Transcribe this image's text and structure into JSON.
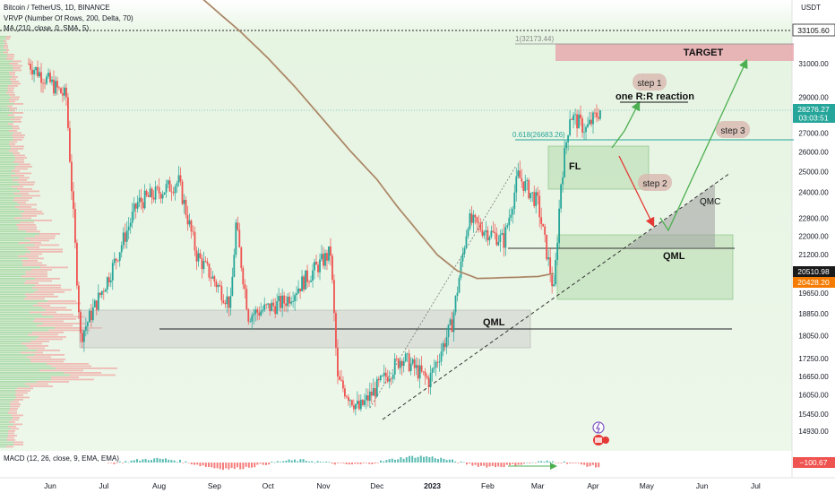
{
  "header": {
    "title": "Bitcoin / TetherUS, 1D, BINANCE",
    "indicator1": "VRVP (Number Of Rows, 200, Delta, 70)",
    "indicator2": "MA (210, close, 0, SMA, 5)",
    "currency": "USDT"
  },
  "macd": {
    "label": "MACD (12, 26, close, 9, EMA, EMA)",
    "value": "−100.67"
  },
  "annotations": {
    "target": "TARGET",
    "step1": "step 1",
    "step2": "step 2",
    "step3": "step 3",
    "reaction": "one R:R reaction",
    "fl": "FL",
    "qmc": "QMC",
    "qml_upper": "QML",
    "qml_lower": "QML",
    "fib_top": "1(32173.44)",
    "fib_618": "0.618(26683.26)"
  },
  "price_badges": {
    "last": "28276.27",
    "countdown": "03:03:51",
    "level_33105": "33105.60",
    "level_20510": "20510.98",
    "ma_value": "20428.20"
  },
  "colors": {
    "up": "#26a69a",
    "down": "#ef5350",
    "ma": "#c8a97e",
    "target_box": "#e8a0a8",
    "zone_green": "#a8d5a0",
    "zone_gray": "#c8c8c8",
    "arrow_green": "#4caf50",
    "arrow_red": "#e53935",
    "bg_green": "#e4f3e0"
  },
  "chart_data": {
    "type": "candlestick",
    "symbol": "BTC/USDT",
    "timeframe": "1D",
    "y_axis_scale": "log",
    "y_ticks": [
      "31000.00",
      "29000.00",
      "27000.00",
      "26000.00",
      "25000.00",
      "24000.00",
      "22800.00",
      "22000.00",
      "21200.00",
      "19650.00",
      "18850.00",
      "18050.00",
      "17250.00",
      "16650.00",
      "16050.00",
      "15450.00",
      "14930.00"
    ],
    "x_ticks": [
      "Jun",
      "Jul",
      "Aug",
      "Sep",
      "Oct",
      "Nov",
      "Dec",
      "2023",
      "Feb",
      "Mar",
      "Apr",
      "May",
      "Jun",
      "Jul"
    ],
    "price_path": [
      {
        "t": "2022-05-20",
        "p": 31000
      },
      {
        "t": "2022-06-10",
        "p": 29000
      },
      {
        "t": "2022-06-18",
        "p": 18000
      },
      {
        "t": "2022-07-05",
        "p": 20500
      },
      {
        "t": "2022-07-20",
        "p": 23500
      },
      {
        "t": "2022-08-12",
        "p": 24500
      },
      {
        "t": "2022-08-22",
        "p": 21200
      },
      {
        "t": "2022-09-10",
        "p": 19200
      },
      {
        "t": "2022-09-13",
        "p": 22500
      },
      {
        "t": "2022-09-20",
        "p": 18800
      },
      {
        "t": "2022-10-10",
        "p": 19300
      },
      {
        "t": "2022-11-05",
        "p": 21300
      },
      {
        "t": "2022-11-09",
        "p": 16500
      },
      {
        "t": "2022-11-21",
        "p": 15600
      },
      {
        "t": "2022-12-15",
        "p": 17300
      },
      {
        "t": "2022-12-30",
        "p": 16500
      },
      {
        "t": "2023-01-12",
        "p": 18500
      },
      {
        "t": "2023-01-21",
        "p": 22700
      },
      {
        "t": "2023-02-10",
        "p": 21800
      },
      {
        "t": "2023-02-18",
        "p": 24800
      },
      {
        "t": "2023-03-01",
        "p": 23500
      },
      {
        "t": "2023-03-10",
        "p": 19700
      },
      {
        "t": "2023-03-14",
        "p": 24500
      },
      {
        "t": "2023-03-19",
        "p": 28000
      },
      {
        "t": "2023-03-28",
        "p": 27200
      },
      {
        "t": "2023-04-05",
        "p": 28276
      }
    ],
    "ma210_path": [
      {
        "t": "2022-05-25",
        "p": 44000
      },
      {
        "t": "2022-08-01",
        "p": 38000
      },
      {
        "t": "2022-10-01",
        "p": 31500
      },
      {
        "t": "2022-12-01",
        "p": 24500
      },
      {
        "t": "2023-01-15",
        "p": 20200
      },
      {
        "t": "2023-03-01",
        "p": 20300
      },
      {
        "t": "2023-03-10",
        "p": 20428
      }
    ],
    "levels": {
      "target_zone": [
        31000,
        31700
      ],
      "fib_1": 32173.44,
      "fib_0618": 26683.26,
      "dotted_top": 33105.6,
      "fl_zone": [
        24300,
        26400
      ],
      "qml_upper_zone": [
        19500,
        22200
      ],
      "qml_upper_line": 21600,
      "qml_lower_zone": [
        17900,
        19100
      ],
      "qml_lower_line": 18350
    }
  }
}
